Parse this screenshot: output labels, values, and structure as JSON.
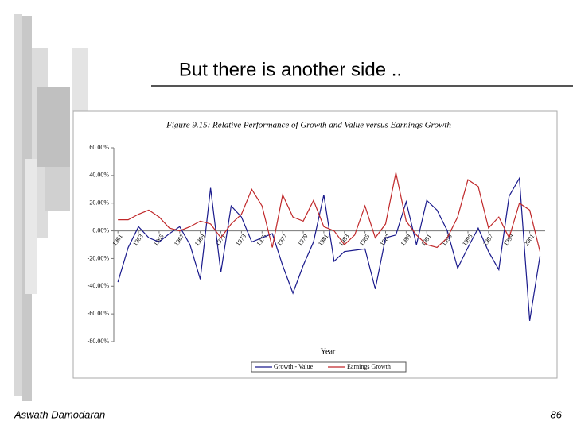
{
  "slide": {
    "title": "But there is another side ..",
    "footer": "Aswath Damodaran",
    "page_number": "86"
  },
  "chart_data": {
    "type": "line",
    "title": "Figure 9.15: Relative Performance of Growth and Value versus Earnings Growth",
    "x_label": "Year",
    "x": [
      1961,
      1962,
      1963,
      1964,
      1965,
      1966,
      1967,
      1968,
      1969,
      1970,
      1971,
      1972,
      1973,
      1974,
      1975,
      1976,
      1977,
      1978,
      1979,
      1980,
      1981,
      1982,
      1983,
      1984,
      1985,
      1986,
      1987,
      1988,
      1989,
      1990,
      1991,
      1992,
      1993,
      1994,
      1995,
      1996,
      1997,
      1998,
      1999,
      2000,
      2001,
      2002
    ],
    "series": [
      {
        "name": "Growth - Value",
        "color": "#1a1a8c",
        "values": [
          -37,
          -12,
          3,
          -5,
          -8,
          -2,
          3,
          -10,
          -35,
          31,
          -30,
          18,
          10,
          -8,
          -5,
          -2,
          -25,
          -45,
          -25,
          -8,
          26,
          -22,
          -15,
          -14,
          -13,
          -42,
          -5,
          -3,
          21,
          -10,
          22,
          15,
          0,
          -27,
          -12,
          2,
          -15,
          -28,
          25,
          38,
          -65,
          -18
        ]
      },
      {
        "name": "Earnings Growth",
        "color": "#c0282a",
        "values": [
          8,
          8,
          12,
          15,
          10,
          2,
          0,
          3,
          7,
          5,
          -5,
          5,
          12,
          30,
          18,
          -12,
          26,
          10,
          7,
          22,
          3,
          0,
          -10,
          -3,
          18,
          -5,
          5,
          42,
          7,
          -3,
          -10,
          -12,
          -5,
          10,
          37,
          32,
          2,
          10,
          -5,
          20,
          15,
          -15
        ]
      }
    ],
    "xlim": [
      1960.6,
      2002.5
    ],
    "xticks": [
      1961,
      1963,
      1965,
      1967,
      1969,
      1971,
      1973,
      1975,
      1977,
      1979,
      1981,
      1983,
      1985,
      1987,
      1989,
      1991,
      1993,
      1995,
      1997,
      1999,
      2001
    ],
    "ylim": [
      -80,
      60
    ],
    "yticks": [
      {
        "value": -80,
        "label": "-80.00%"
      },
      {
        "value": -60,
        "label": "-60.00%"
      },
      {
        "value": -40,
        "label": "-40.00%"
      },
      {
        "value": -20,
        "label": "-20.00%"
      },
      {
        "value": 0,
        "label": "0.00%"
      },
      {
        "value": 20,
        "label": "20.00%"
      },
      {
        "value": 40,
        "label": "40.00%"
      },
      {
        "value": 60,
        "label": "60.00%"
      }
    ],
    "grid": false,
    "legend": "bottom"
  }
}
